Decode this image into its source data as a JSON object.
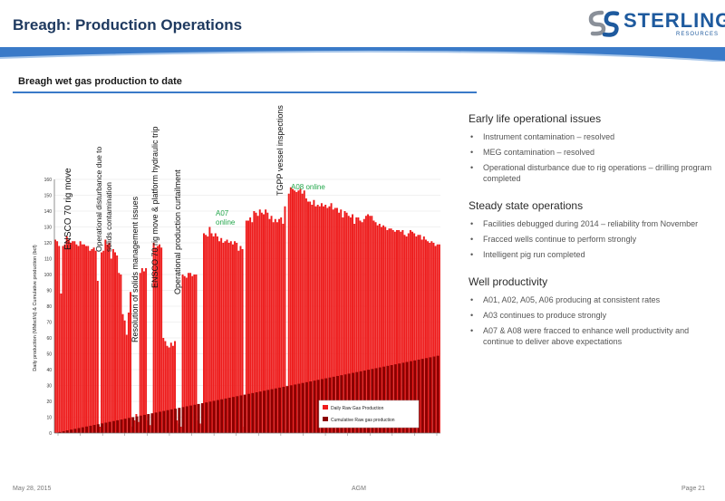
{
  "header": {
    "title": "Breagh: Production Operations",
    "logo_text": "STERLING",
    "logo_subtext": "RESOURCES",
    "colors": {
      "title": "#1f3a60",
      "band": "#3a7ac8",
      "logo": "#1e5a9e"
    }
  },
  "section_title": "Breagh wet gas production to date",
  "panel": {
    "sections": [
      {
        "heading": "Early life operational issues",
        "bullets": [
          "Instrument contamination – resolved",
          "MEG contamination – resolved",
          "Operational disturbance due to rig operations – drilling program completed"
        ]
      },
      {
        "heading": "Steady state operations",
        "bullets": [
          "Facilities debugged during 2014 – reliability from November",
          "Fracced wells continue to perform strongly",
          "Intelligent pig run completed"
        ]
      },
      {
        "heading": "Well productivity",
        "bullets": [
          "A01, A02, A05, A06 producing at consistent rates",
          "A03 continues to produce strongly",
          "A07 & A08 were fracced to enhance well productivity and continue to deliver above expectations"
        ]
      }
    ]
  },
  "footer": {
    "date": "May 28, 2015",
    "center": "AGM",
    "page": "Page 21"
  },
  "chart_data": {
    "type": "bar",
    "ylabel": "Daily production (MMscf/d) & Cumulative production (bcf)",
    "ylim": [
      0,
      160
    ],
    "yticks": [
      0,
      10,
      20,
      30,
      40,
      50,
      60,
      70,
      80,
      90,
      100,
      110,
      120,
      130,
      140,
      150,
      160
    ],
    "xtick_count": 18,
    "colors": {
      "daily": "#ee1c1c",
      "cumulative": "#8b0000",
      "annotation": "#22a64a"
    },
    "series": [
      {
        "name": "Daily Raw Gas Production",
        "values": [
          122,
          121,
          118,
          88,
          118,
          119,
          124,
          122,
          120,
          121,
          121,
          119,
          118,
          121,
          119,
          119,
          118,
          118,
          115,
          116,
          117,
          115,
          96,
          4,
          114,
          115,
          122,
          119,
          120,
          110,
          116,
          114,
          112,
          101,
          100,
          75,
          71,
          62,
          76,
          89,
          4,
          8,
          12,
          7,
          101,
          104,
          102,
          104,
          8,
          5,
          6,
          120,
          117,
          118,
          119,
          117,
          60,
          58,
          55,
          54,
          57,
          55,
          58,
          8,
          6,
          4,
          100,
          99,
          98,
          101,
          101,
          99,
          100,
          100,
          8,
          6,
          5,
          126,
          125,
          124,
          130,
          126,
          124,
          126,
          124,
          121,
          123,
          120,
          121,
          122,
          120,
          121,
          119,
          121,
          120,
          115,
          118,
          116,
          4,
          134,
          134,
          136,
          133,
          140,
          139,
          137,
          141,
          139,
          138,
          141,
          139,
          135,
          137,
          133,
          135,
          133,
          135,
          136,
          132,
          143,
          2,
          151,
          155,
          154,
          153,
          152,
          153,
          154,
          151,
          153,
          148,
          146,
          146,
          144,
          147,
          143,
          144,
          143,
          145,
          143,
          144,
          142,
          143,
          145,
          141,
          142,
          142,
          139,
          141,
          136,
          140,
          139,
          137,
          136,
          138,
          132,
          136,
          136,
          134,
          133,
          135,
          137,
          138,
          137,
          137,
          134,
          133,
          131,
          132,
          130,
          131,
          130,
          128,
          129,
          129,
          128,
          127,
          128,
          128,
          127,
          128,
          125,
          124,
          126,
          128,
          127,
          126,
          124,
          125,
          125,
          122,
          124,
          122,
          121,
          120,
          121,
          120,
          118,
          119,
          119
        ]
      },
      {
        "name": "Cumulative Raw gas production",
        "values": [
          0.2,
          49
        ]
      }
    ],
    "annotations": [
      {
        "text": "ENSCO 70 rig move",
        "color": "black"
      },
      {
        "text": "Operational disturbance due to",
        "color": "black"
      },
      {
        "text": "solids contamination",
        "color": "black"
      },
      {
        "text": "Resolution of solids management issues",
        "color": "black"
      },
      {
        "text": "ENSCO 70 rig move & platform hydraulic trip",
        "color": "black"
      },
      {
        "text": "Operational production curtailment",
        "color": "black"
      },
      {
        "text": "A07",
        "color": "green"
      },
      {
        "text": "online",
        "color": "green"
      },
      {
        "text": "TGPP vessel inspections",
        "color": "black"
      },
      {
        "text": "A08 online",
        "color": "green"
      }
    ]
  }
}
